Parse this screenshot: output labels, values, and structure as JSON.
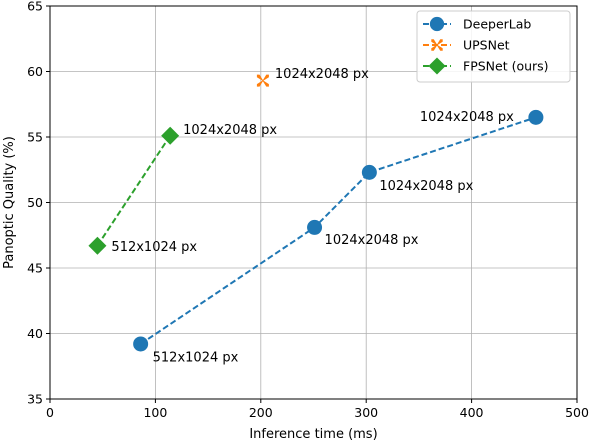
{
  "chart_data": {
    "type": "line",
    "xlabel": "Inference time (ms)",
    "ylabel": "Panoptic Quality (%)",
    "xlim": [
      0,
      500
    ],
    "ylim": [
      35,
      65
    ],
    "xticks": [
      0,
      100,
      200,
      300,
      400,
      500
    ],
    "yticks": [
      35,
      40,
      45,
      50,
      55,
      60,
      65
    ],
    "grid": true,
    "legend_position": "top-right",
    "series": [
      {
        "name": "DeeperLab",
        "color": "#1f77b4",
        "marker": "circle",
        "linestyle": "dashed",
        "points": [
          {
            "x": 86,
            "y": 39.2,
            "label": "512x1024 px"
          },
          {
            "x": 251,
            "y": 48.1,
            "label": "1024x2048 px"
          },
          {
            "x": 303,
            "y": 52.3,
            "label": "1024x2048 px"
          },
          {
            "x": 461,
            "y": 56.5,
            "label": "1024x2048 px"
          }
        ]
      },
      {
        "name": "UPSNet",
        "color": "#ff7f0e",
        "marker": "x",
        "linestyle": "dashed",
        "points": [
          {
            "x": 202,
            "y": 59.3,
            "label": "1024x2048 px"
          }
        ]
      },
      {
        "name": "FPSNet (ours)",
        "color": "#2ca02c",
        "marker": "diamond",
        "linestyle": "dashed",
        "points": [
          {
            "x": 45,
            "y": 46.7,
            "label": "512x1024 px"
          },
          {
            "x": 114,
            "y": 55.1,
            "label": "1024x2048 px"
          }
        ]
      }
    ]
  }
}
